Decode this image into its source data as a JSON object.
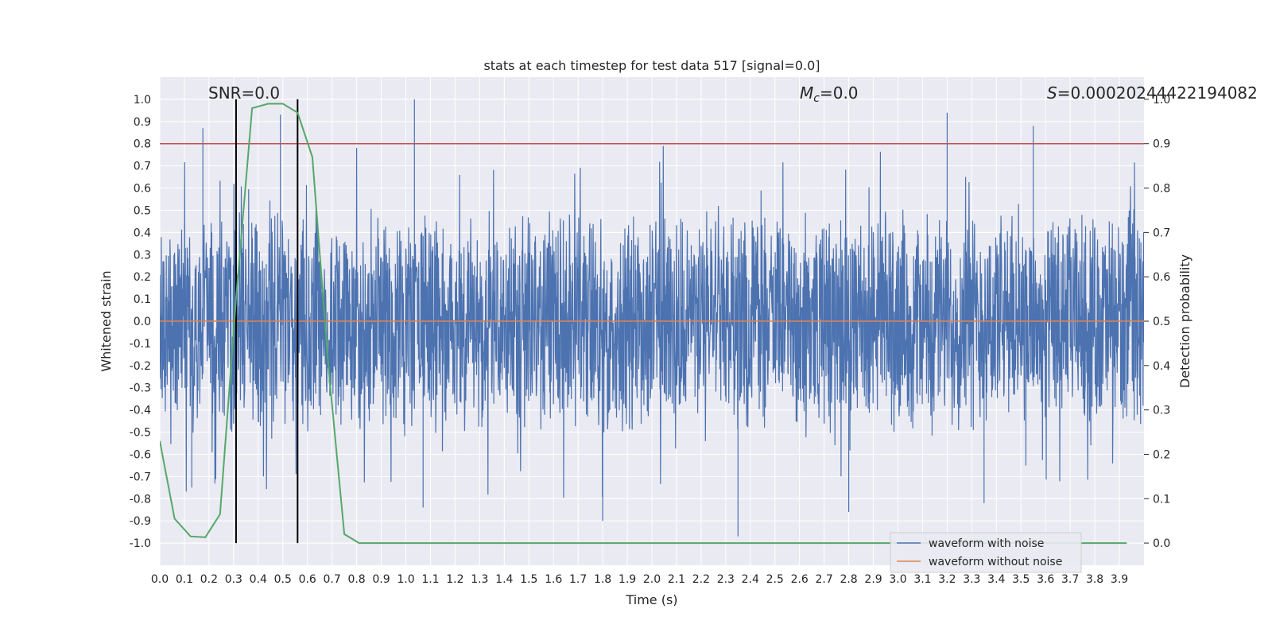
{
  "chart_data": {
    "type": "line",
    "title": "stats at each timestep for test data 517 [signal=0.0]",
    "xlabel": "Time (s)",
    "ylabel": "Whitened strain",
    "ylabel_right": "Detection probability",
    "xlim": [
      0.0,
      4.0
    ],
    "ylim": [
      -1.1,
      1.1
    ],
    "ylim_right": [
      -0.05,
      1.05
    ],
    "x_ticks": [
      "0.0",
      "0.1",
      "0.2",
      "0.3",
      "0.4",
      "0.5",
      "0.6",
      "0.7",
      "0.8",
      "0.9",
      "1.0",
      "1.1",
      "1.2",
      "1.3",
      "1.4",
      "1.5",
      "1.6",
      "1.7",
      "1.8",
      "1.9",
      "2.0",
      "2.1",
      "2.2",
      "2.3",
      "2.4",
      "2.5",
      "2.6",
      "2.7",
      "2.8",
      "2.9",
      "3.0",
      "3.1",
      "3.2",
      "3.3",
      "3.4",
      "3.5",
      "3.6",
      "3.7",
      "3.8",
      "3.9"
    ],
    "y_ticks": [
      "1.0",
      "0.9",
      "0.8",
      "0.7",
      "0.6",
      "0.5",
      "0.4",
      "0.3",
      "0.2",
      "0.1",
      "0.0",
      "-0.1",
      "-0.2",
      "-0.3",
      "-0.4",
      "-0.5",
      "-0.6",
      "-0.7",
      "-0.8",
      "-0.9",
      "-1.0"
    ],
    "y_ticks_right": [
      "1.0",
      "0.9",
      "0.8",
      "0.7",
      "0.6",
      "0.5",
      "0.4",
      "0.3",
      "0.2",
      "0.1",
      "0.0"
    ],
    "annotations": {
      "snr": "SNR=0.0",
      "mc_label": "M",
      "mc_sub": "c",
      "mc_value": "=0.0",
      "s_label": "S",
      "s_value": "=0.00020244422194082"
    },
    "legend": {
      "placement": "lower-right",
      "entries": [
        "waveform with noise",
        "waveform without noise"
      ]
    },
    "grid": true,
    "colors": {
      "noise": "#4c72b0",
      "clean": "#dd8452",
      "probability": "#55a868",
      "threshold": "#c44e52",
      "marker": "#000000",
      "background": "#eaeaf2"
    },
    "threshold_right": 0.9,
    "vlines_x": [
      0.31,
      0.56
    ],
    "series": [
      {
        "name": "waveform with noise",
        "description": "dense noisy whitened strain, roughly uniform amplitude about +/-0.4 with spikes",
        "sample_spikes": [
          {
            "x": 0.175,
            "y": 0.87
          },
          {
            "x": 0.49,
            "y": 0.93
          },
          {
            "x": 1.035,
            "y": 1.0
          },
          {
            "x": 3.2,
            "y": 0.94
          },
          {
            "x": 3.55,
            "y": 0.88
          },
          {
            "x": 2.35,
            "y": -0.97
          },
          {
            "x": 1.8,
            "y": -0.9
          },
          {
            "x": 2.8,
            "y": -0.86
          },
          {
            "x": 1.07,
            "y": -0.84
          },
          {
            "x": 0.13,
            "y": -0.75
          },
          {
            "x": 3.35,
            "y": -0.82
          }
        ]
      },
      {
        "name": "waveform without noise",
        "y_constant": 0.0
      },
      {
        "axis": "right",
        "x": [
          0.0,
          0.06,
          0.125,
          0.185,
          0.245,
          0.31,
          0.375,
          0.44,
          0.5,
          0.56,
          0.62,
          0.685,
          0.75,
          0.81,
          3.93
        ],
        "values": [
          0.23,
          0.055,
          0.015,
          0.013,
          0.065,
          0.55,
          0.98,
          0.99,
          0.99,
          0.97,
          0.87,
          0.4,
          0.02,
          0.0,
          0.0
        ]
      }
    ]
  }
}
